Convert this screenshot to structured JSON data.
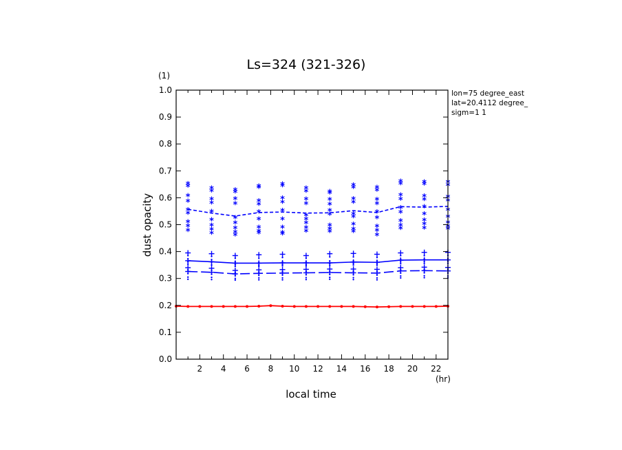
{
  "chart_data": {
    "type": "line",
    "title": "Ls=324 (321-326)",
    "xlabel": "local time",
    "ylabel": "dust opacity",
    "x_unit": "(hr)",
    "y_unit": "(1)",
    "xlim": [
      0,
      23
    ],
    "ylim": [
      0,
      1
    ],
    "x_ticks": [
      2,
      4,
      6,
      8,
      10,
      12,
      14,
      16,
      18,
      20,
      22
    ],
    "y_ticks": [
      0.0,
      0.1,
      0.2,
      0.3,
      0.4,
      0.5,
      0.6,
      0.7,
      0.8,
      0.9,
      1.0
    ],
    "annotations": [
      "lon=75 degree_east",
      "lat=20.4112 degree_",
      "sigm=1 1"
    ],
    "x": [
      1,
      3,
      5,
      7,
      9,
      11,
      13,
      15,
      17,
      19,
      21,
      23
    ],
    "series": [
      {
        "style": "dashed",
        "color": "#0000ff",
        "values": [
          0.557,
          0.543,
          0.532,
          0.545,
          0.547,
          0.543,
          0.544,
          0.552,
          0.545,
          0.567,
          0.565,
          0.568
        ],
        "marker": "asterisk",
        "samples": [
          [
            0.652,
            0.643,
            0.608,
            0.587,
            0.555,
            0.542,
            0.51,
            0.495,
            0.478
          ],
          [
            0.636,
            0.625,
            0.594,
            0.58,
            0.548,
            0.518,
            0.497,
            0.482,
            0.468
          ],
          [
            0.629,
            0.622,
            0.596,
            0.578,
            0.526,
            0.506,
            0.487,
            0.472,
            0.462
          ],
          [
            0.643,
            0.638,
            0.588,
            0.576,
            0.547,
            0.52,
            0.49,
            0.476,
            0.469
          ],
          [
            0.651,
            0.645,
            0.598,
            0.583,
            0.553,
            0.52,
            0.49,
            0.47,
            0.465
          ],
          [
            0.635,
            0.624,
            0.595,
            0.578,
            0.534,
            0.52,
            0.506,
            0.488,
            0.476
          ],
          [
            0.623,
            0.618,
            0.593,
            0.576,
            0.552,
            0.539,
            0.497,
            0.485,
            0.475
          ],
          [
            0.647,
            0.638,
            0.596,
            0.583,
            0.54,
            0.529,
            0.501,
            0.484,
            0.475
          ],
          [
            0.638,
            0.628,
            0.593,
            0.578,
            0.547,
            0.526,
            0.493,
            0.478,
            0.461
          ],
          [
            0.661,
            0.652,
            0.61,
            0.594,
            0.563,
            0.546,
            0.514,
            0.497,
            0.486
          ],
          [
            0.659,
            0.651,
            0.606,
            0.593,
            0.566,
            0.54,
            0.516,
            0.502,
            0.487
          ],
          [
            0.659,
            0.647,
            0.603,
            0.589,
            0.555,
            0.53,
            0.508,
            0.494,
            0.485
          ]
        ]
      },
      {
        "style": "solid",
        "color": "#0000ff",
        "values": [
          0.366,
          0.362,
          0.357,
          0.357,
          0.358,
          0.358,
          0.358,
          0.361,
          0.36,
          0.368,
          0.369,
          0.369
        ],
        "marker": "plus",
        "samples": [
          [
            0.395,
            0.385,
            0.373,
            0.362,
            0.353
          ],
          [
            0.392,
            0.382,
            0.37,
            0.36,
            0.35
          ],
          [
            0.385,
            0.375,
            0.362,
            0.352,
            0.345
          ],
          [
            0.388,
            0.375,
            0.36,
            0.35,
            0.345
          ],
          [
            0.39,
            0.378,
            0.362,
            0.352,
            0.347
          ],
          [
            0.385,
            0.375,
            0.362,
            0.352,
            0.347
          ],
          [
            0.392,
            0.38,
            0.365,
            0.355,
            0.348
          ],
          [
            0.393,
            0.38,
            0.366,
            0.356,
            0.35
          ],
          [
            0.39,
            0.378,
            0.365,
            0.355,
            0.349
          ],
          [
            0.395,
            0.385,
            0.372,
            0.362,
            0.355
          ],
          [
            0.397,
            0.385,
            0.373,
            0.363,
            0.356
          ],
          [
            0.397,
            0.385,
            0.374,
            0.364,
            0.356
          ]
        ]
      },
      {
        "style": "long-dashed",
        "color": "#0000ff",
        "values": [
          0.326,
          0.323,
          0.317,
          0.319,
          0.32,
          0.321,
          0.322,
          0.321,
          0.32,
          0.328,
          0.329,
          0.328
        ],
        "marker": "plus",
        "samples": [
          [
            0.34,
            0.332,
            0.318,
            0.305,
            0.297
          ],
          [
            0.338,
            0.33,
            0.316,
            0.304,
            0.296
          ],
          [
            0.33,
            0.322,
            0.31,
            0.3,
            0.294
          ],
          [
            0.332,
            0.324,
            0.312,
            0.302,
            0.295
          ],
          [
            0.333,
            0.325,
            0.313,
            0.302,
            0.295
          ],
          [
            0.334,
            0.326,
            0.314,
            0.303,
            0.296
          ],
          [
            0.335,
            0.327,
            0.315,
            0.304,
            0.297
          ],
          [
            0.335,
            0.327,
            0.314,
            0.303,
            0.296
          ],
          [
            0.334,
            0.326,
            0.313,
            0.302,
            0.295
          ],
          [
            0.34,
            0.332,
            0.32,
            0.309,
            0.302
          ],
          [
            0.342,
            0.334,
            0.321,
            0.31,
            0.303
          ],
          [
            0.341,
            0.333,
            0.32,
            0.309,
            0.302
          ]
        ]
      },
      {
        "style": "solid",
        "color": "#ff0000",
        "x": [
          0,
          1,
          2,
          3,
          4,
          5,
          6,
          7,
          8,
          9,
          10,
          11,
          12,
          13,
          14,
          15,
          16,
          17,
          18,
          19,
          20,
          21,
          22,
          23
        ],
        "values": [
          0.197,
          0.196,
          0.196,
          0.196,
          0.196,
          0.196,
          0.196,
          0.197,
          0.199,
          0.197,
          0.196,
          0.196,
          0.196,
          0.196,
          0.196,
          0.196,
          0.195,
          0.194,
          0.195,
          0.196,
          0.196,
          0.196,
          0.196,
          0.197
        ],
        "marker": "dot"
      }
    ]
  }
}
